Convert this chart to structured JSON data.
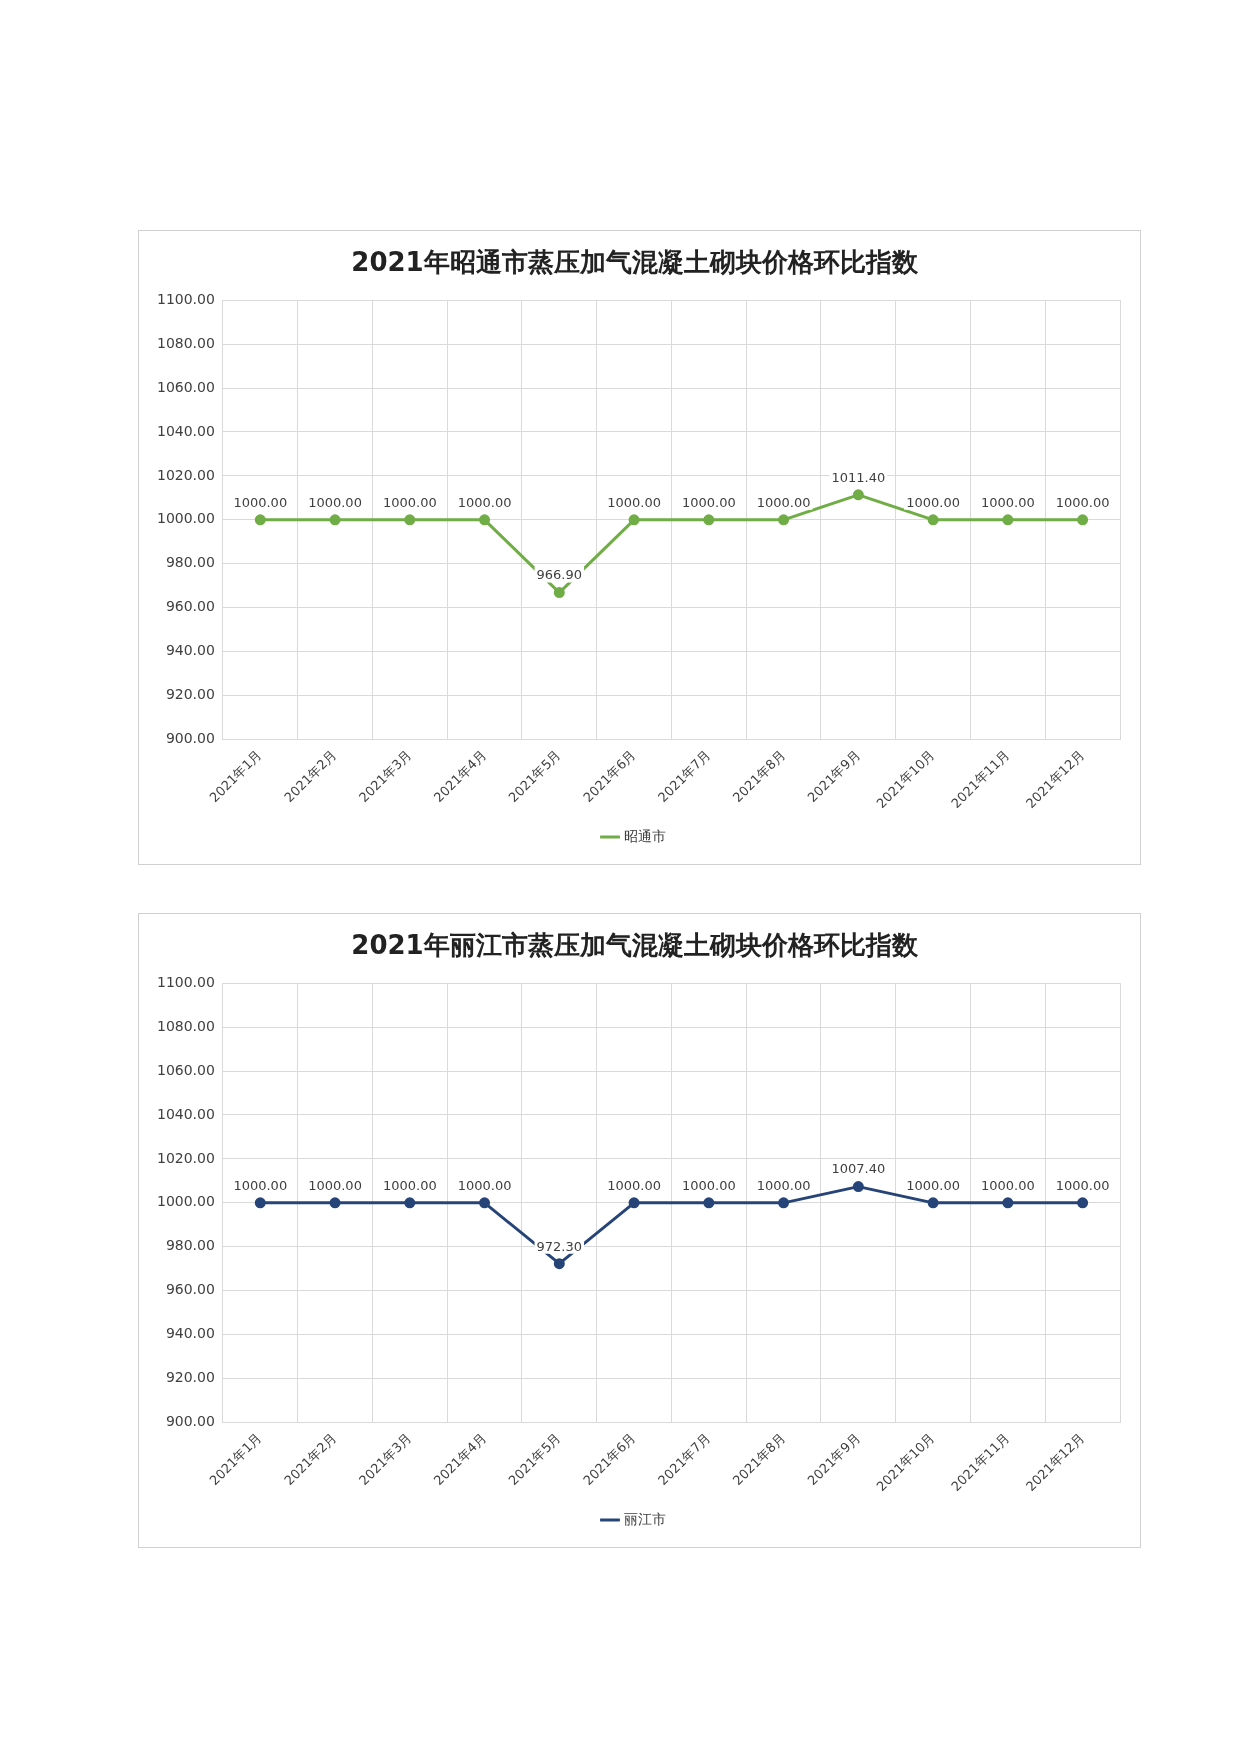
{
  "chart_data": [
    {
      "type": "line",
      "title": "2021年昭通市蒸压加气混凝土砌块价格环比指数",
      "categories": [
        "2021年1月",
        "2021年2月",
        "2021年3月",
        "2021年4月",
        "2021年5月",
        "2021年6月",
        "2021年7月",
        "2021年8月",
        "2021年9月",
        "2021年10月",
        "2021年11月",
        "2021年12月"
      ],
      "series": [
        {
          "name": "昭通市",
          "color": "#70ad47",
          "values": [
            1000,
            1000,
            1000,
            1000,
            966.9,
            1000,
            1000,
            1000,
            1011.4,
            1000,
            1000,
            1000
          ],
          "value_labels": [
            "1000.00",
            "1000.00",
            "1000.00",
            "1000.00",
            "966.90",
            "1000.00",
            "1000.00",
            "1000.00",
            "1011.40",
            "1000.00",
            "1000.00",
            "1000.00"
          ]
        }
      ],
      "ylim": [
        900,
        1100
      ],
      "yticks": [
        {
          "value": 900,
          "label": "900.00"
        },
        {
          "value": 920,
          "label": "920.00"
        },
        {
          "value": 940,
          "label": "940.00"
        },
        {
          "value": 960,
          "label": "960.00"
        },
        {
          "value": 980,
          "label": "980.00"
        },
        {
          "value": 1000,
          "label": "1000.00"
        },
        {
          "value": 1020,
          "label": "1020.00"
        },
        {
          "value": 1040,
          "label": "1040.00"
        },
        {
          "value": 1060,
          "label": "1060.00"
        },
        {
          "value": 1080,
          "label": "1080.00"
        },
        {
          "value": 1100,
          "label": "1100.00"
        }
      ],
      "grid": true,
      "legend": "bottom",
      "marker": "circle"
    },
    {
      "type": "line",
      "title": "2021年丽江市蒸压加气混凝土砌块价格环比指数",
      "categories": [
        "2021年1月",
        "2021年2月",
        "2021年3月",
        "2021年4月",
        "2021年5月",
        "2021年6月",
        "2021年7月",
        "2021年8月",
        "2021年9月",
        "2021年10月",
        "2021年11月",
        "2021年12月"
      ],
      "series": [
        {
          "name": "丽江市",
          "color": "#264478",
          "values": [
            1000,
            1000,
            1000,
            1000,
            972.3,
            1000,
            1000,
            1000,
            1007.4,
            1000,
            1000,
            1000
          ],
          "value_labels": [
            "1000.00",
            "1000.00",
            "1000.00",
            "1000.00",
            "972.30",
            "1000.00",
            "1000.00",
            "1000.00",
            "1007.40",
            "1000.00",
            "1000.00",
            "1000.00"
          ]
        }
      ],
      "ylim": [
        900,
        1100
      ],
      "yticks": [
        {
          "value": 900,
          "label": "900.00"
        },
        {
          "value": 920,
          "label": "920.00"
        },
        {
          "value": 940,
          "label": "940.00"
        },
        {
          "value": 960,
          "label": "960.00"
        },
        {
          "value": 980,
          "label": "980.00"
        },
        {
          "value": 1000,
          "label": "1000.00"
        },
        {
          "value": 1020,
          "label": "1020.00"
        },
        {
          "value": 1040,
          "label": "1040.00"
        },
        {
          "value": 1060,
          "label": "1060.00"
        },
        {
          "value": 1080,
          "label": "1080.00"
        },
        {
          "value": 1100,
          "label": "1100.00"
        }
      ],
      "grid": true,
      "legend": "bottom",
      "marker": "circle"
    }
  ]
}
